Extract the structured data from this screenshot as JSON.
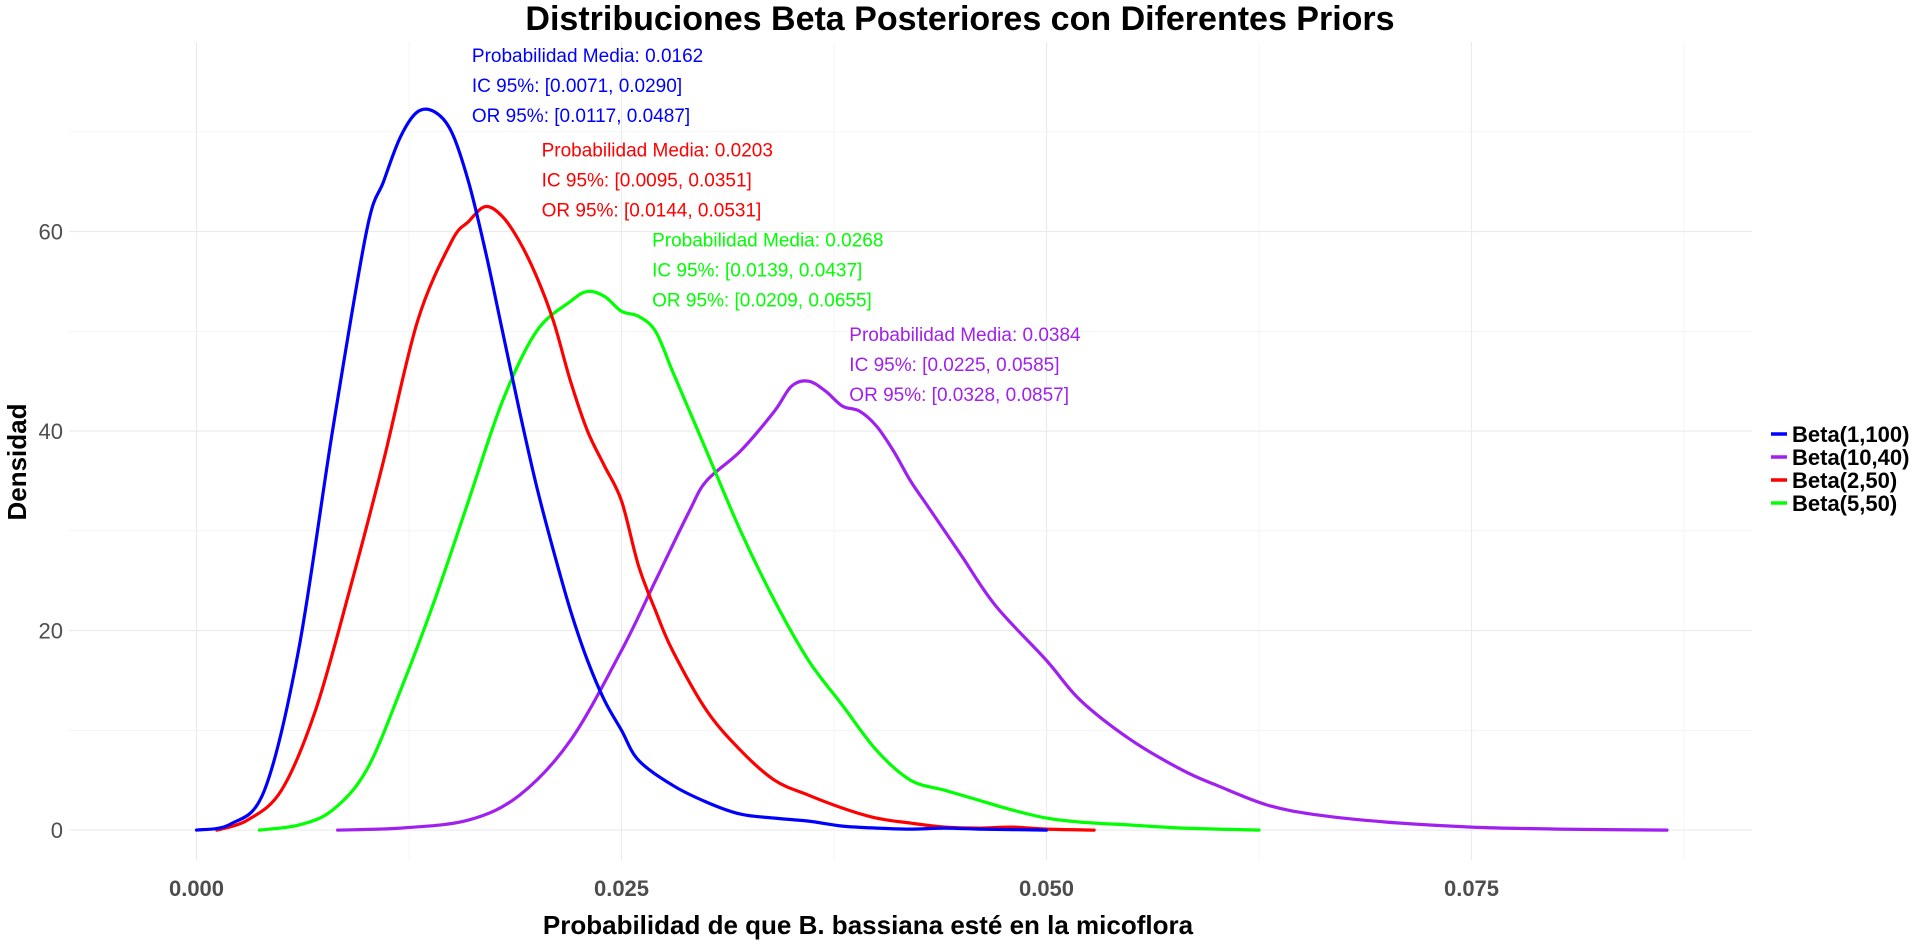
{
  "chart_data": {
    "type": "line",
    "title": "Distribuciones Beta Posteriores con Diferentes Priors",
    "xlabel": "Probabilidad de que B. bassiana esté en la micoflora",
    "ylabel": "Densidad",
    "xlim": [
      -0.0075,
      0.0915
    ],
    "ylim": [
      -3,
      79
    ],
    "x_ticks": [
      0.0,
      0.025,
      0.05,
      0.075
    ],
    "x_tick_labels": [
      "0.000",
      "0.025",
      "0.050",
      "0.075"
    ],
    "y_ticks": [
      0,
      20,
      40,
      60
    ],
    "y_tick_labels": [
      "0",
      "20",
      "40",
      "60"
    ],
    "grid": true,
    "legend_position": "right",
    "series": [
      {
        "name": "Beta(1,100)",
        "color": "#0000ff",
        "x": [
          0.0,
          0.002,
          0.004,
          0.006,
          0.008,
          0.01,
          0.011,
          0.012,
          0.013,
          0.014,
          0.015,
          0.016,
          0.017,
          0.018,
          0.019,
          0.02,
          0.021,
          0.022,
          0.023,
          0.024,
          0.025,
          0.026,
          0.028,
          0.03,
          0.032,
          0.034,
          0.036,
          0.038,
          0.04,
          0.042,
          0.044,
          0.046,
          0.048,
          0.05
        ],
        "y": [
          0.0,
          0.6,
          4.0,
          18.0,
          40.0,
          60.0,
          65.0,
          69.5,
          72.0,
          72.0,
          70.0,
          65.0,
          58.0,
          50.0,
          42.0,
          34.5,
          28.0,
          22.0,
          17.0,
          13.0,
          10.0,
          7.0,
          4.5,
          2.8,
          1.6,
          1.2,
          0.9,
          0.4,
          0.2,
          0.1,
          0.2,
          0.1,
          0.05,
          0.0
        ]
      },
      {
        "name": "Beta(10,40)",
        "color": "#a020f0",
        "x": [
          0.0083,
          0.012,
          0.016,
          0.019,
          0.022,
          0.025,
          0.027,
          0.029,
          0.03,
          0.032,
          0.034,
          0.035,
          0.036,
          0.037,
          0.038,
          0.039,
          0.04,
          0.041,
          0.042,
          0.043,
          0.045,
          0.047,
          0.05,
          0.052,
          0.055,
          0.058,
          0.06,
          0.063,
          0.066,
          0.07,
          0.075,
          0.08,
          0.0865
        ],
        "y": [
          0.0,
          0.2,
          1.0,
          3.5,
          9.0,
          18.0,
          25.0,
          32.0,
          35.0,
          38.0,
          42.0,
          44.5,
          45.0,
          44.0,
          42.5,
          42.0,
          40.5,
          38.0,
          35.0,
          32.5,
          27.5,
          22.5,
          17.0,
          13.0,
          9.0,
          6.0,
          4.5,
          2.5,
          1.5,
          0.8,
          0.3,
          0.1,
          0.0
        ]
      },
      {
        "name": "Beta(2,50)",
        "color": "#ff0000",
        "x": [
          0.0012,
          0.003,
          0.005,
          0.007,
          0.009,
          0.011,
          0.013,
          0.015,
          0.016,
          0.017,
          0.018,
          0.019,
          0.02,
          0.021,
          0.022,
          0.023,
          0.024,
          0.025,
          0.026,
          0.027,
          0.028,
          0.03,
          0.032,
          0.034,
          0.036,
          0.038,
          0.04,
          0.042,
          0.044,
          0.046,
          0.048,
          0.05,
          0.0528
        ],
        "y": [
          0.0,
          1.0,
          4.0,
          12.0,
          24.0,
          37.0,
          51.0,
          59.0,
          61.0,
          62.5,
          61.5,
          59.0,
          55.5,
          51.0,
          45.0,
          40.0,
          36.5,
          33.0,
          26.5,
          22.0,
          18.0,
          12.0,
          8.0,
          5.0,
          3.5,
          2.2,
          1.2,
          0.7,
          0.3,
          0.2,
          0.3,
          0.1,
          0.0
        ]
      },
      {
        "name": "Beta(5,50)",
        "color": "#00ff00",
        "x": [
          0.0037,
          0.006,
          0.008,
          0.01,
          0.012,
          0.014,
          0.016,
          0.018,
          0.02,
          0.022,
          0.023,
          0.024,
          0.025,
          0.026,
          0.027,
          0.028,
          0.029,
          0.03,
          0.032,
          0.034,
          0.036,
          0.038,
          0.04,
          0.042,
          0.044,
          0.046,
          0.048,
          0.05,
          0.052,
          0.055,
          0.058,
          0.0625
        ],
        "y": [
          0.0,
          0.5,
          2.0,
          6.0,
          14.0,
          23.0,
          33.0,
          43.0,
          50.0,
          53.0,
          54.0,
          53.5,
          52.0,
          51.5,
          50.0,
          46.0,
          42.0,
          38.0,
          30.0,
          23.0,
          17.0,
          12.5,
          8.0,
          5.0,
          4.0,
          3.0,
          2.0,
          1.2,
          0.8,
          0.5,
          0.2,
          0.0
        ]
      }
    ],
    "annotations": [
      {
        "series": "Beta(1,100)",
        "color": "#0000ff",
        "x": 0.0162,
        "y": 71,
        "lines": [
          "Probabilidad Media: 0.0162",
          "IC 95%: [0.0071, 0.0290]",
          "OR 95%: [0.0117, 0.0487]"
        ]
      },
      {
        "series": "Beta(2,50)",
        "color": "#ff0000",
        "x": 0.0203,
        "y": 61.5,
        "lines": [
          "Probabilidad Media: 0.0203",
          "IC 95%: [0.0095, 0.0351]",
          "OR 95%: [0.0144, 0.0531]"
        ]
      },
      {
        "series": "Beta(5,50)",
        "color": "#00ff00",
        "x": 0.0268,
        "y": 52.5,
        "lines": [
          "Probabilidad Media: 0.0268",
          "IC 95%: [0.0139, 0.0437]",
          "OR 95%: [0.0209, 0.0655]"
        ]
      },
      {
        "series": "Beta(10,40)",
        "color": "#a020f0",
        "x": 0.0384,
        "y": 43,
        "lines": [
          "Probabilidad Media: 0.0384",
          "IC 95%: [0.0225, 0.0585]",
          "OR 95%: [0.0328, 0.0857]"
        ]
      }
    ]
  }
}
